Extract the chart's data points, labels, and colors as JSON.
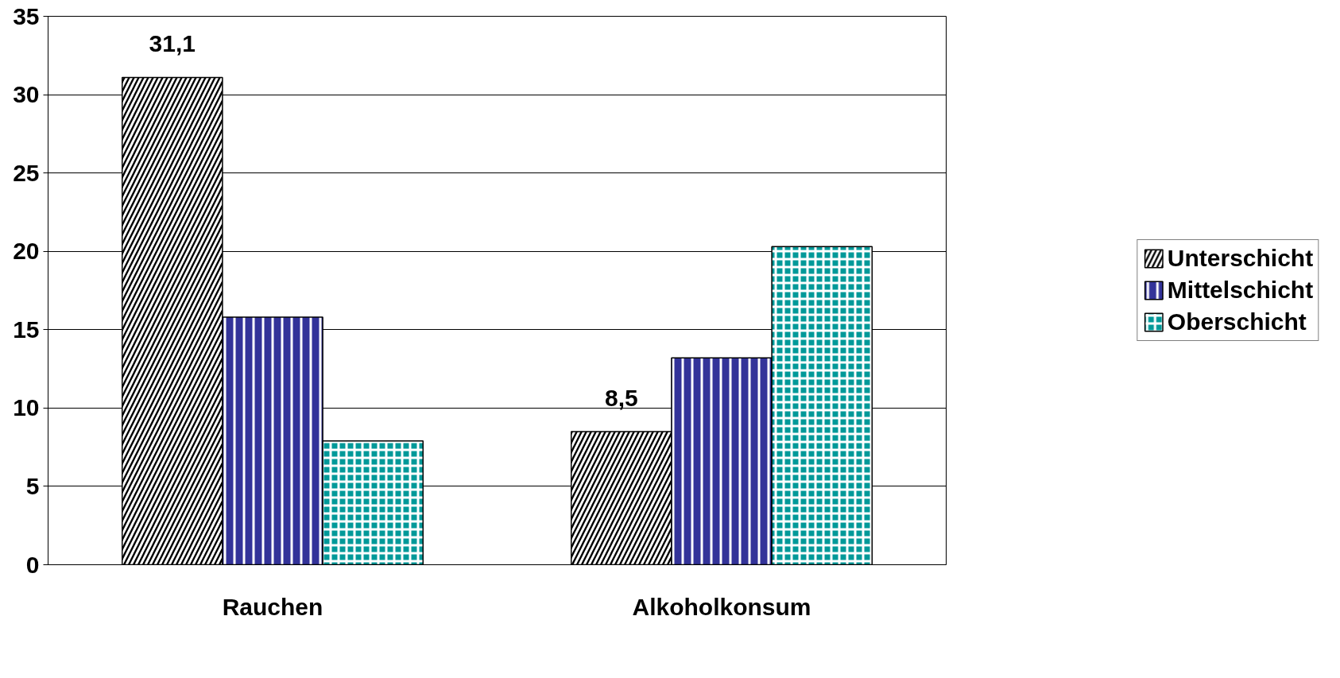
{
  "chart_data": {
    "type": "bar",
    "categories": [
      "Rauchen",
      "Alkoholkonsum"
    ],
    "series": [
      {
        "name": "Unterschicht",
        "color": "#000000",
        "values": [
          31.1,
          8.5
        ],
        "value_labels": [
          "31,1",
          "8,5"
        ]
      },
      {
        "name": "Mittelschicht",
        "color": "#333399",
        "values": [
          15.8,
          13.2
        ]
      },
      {
        "name": "Oberschicht",
        "color": "#009999",
        "values": [
          7.9,
          20.3
        ]
      }
    ],
    "ylim": [
      0,
      35
    ],
    "yticks": [
      0,
      5,
      10,
      15,
      20,
      25,
      30,
      35
    ],
    "grid": "y",
    "legend": "right"
  }
}
